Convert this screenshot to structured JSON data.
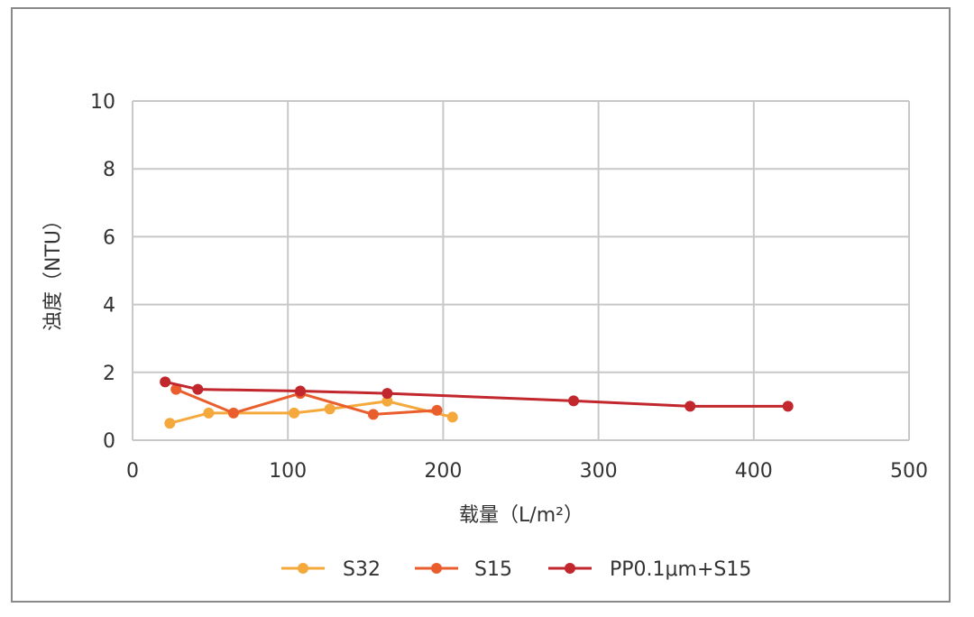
{
  "chart_data": {
    "type": "line",
    "xlabel": "载量（L/m²）",
    "ylabel": "浊度（NTU）",
    "xlim": [
      0,
      500
    ],
    "ylim": [
      0,
      10
    ],
    "x_ticks": [
      "0",
      "100",
      "200",
      "300",
      "400",
      "500"
    ],
    "y_ticks": [
      "0",
      "2",
      "4",
      "6",
      "8",
      "10"
    ],
    "grid": true,
    "legend_position": "bottom",
    "series": [
      {
        "name": "S32",
        "color": "#f5a93c",
        "points": [
          [
            24,
            0.5
          ],
          [
            49,
            0.8
          ],
          [
            104,
            0.8
          ],
          [
            127,
            0.92
          ],
          [
            164,
            1.15
          ],
          [
            206,
            0.68
          ]
        ]
      },
      {
        "name": "S15",
        "color": "#ea5e2d",
        "points": [
          [
            28,
            1.5
          ],
          [
            65,
            0.8
          ],
          [
            108,
            1.38
          ],
          [
            155,
            0.76
          ],
          [
            196,
            0.88
          ]
        ]
      },
      {
        "name": "PP0.1μm+S15",
        "color": "#c1272d",
        "points": [
          [
            21,
            1.72
          ],
          [
            42,
            1.5
          ],
          [
            108,
            1.45
          ],
          [
            164,
            1.38
          ],
          [
            284,
            1.16
          ],
          [
            359,
            1.0
          ],
          [
            422,
            1.0
          ]
        ]
      }
    ]
  }
}
